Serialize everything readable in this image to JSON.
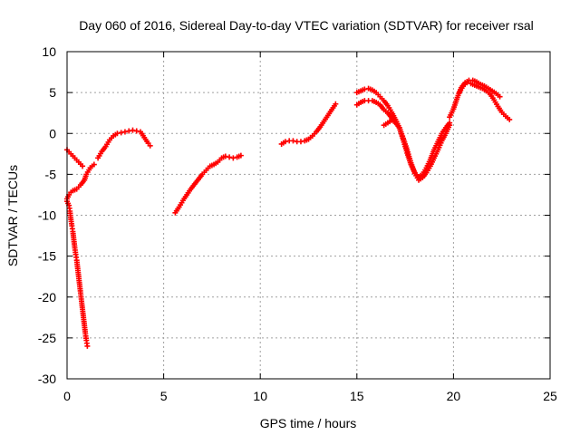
{
  "chart_data": {
    "type": "scatter",
    "title": "Day 060 of 2016, Sidereal Day-to-day VTEC variation (SDTVAR) for receiver rsal",
    "xlabel": "GPS time / hours",
    "ylabel": "SDTVAR / TECUs",
    "xlim": [
      0,
      25
    ],
    "ylim": [
      -30,
      10
    ],
    "xticks": [
      0,
      5,
      10,
      15,
      20,
      25
    ],
    "yticks": [
      -30,
      -25,
      -20,
      -15,
      -10,
      -5,
      0,
      5,
      10
    ],
    "grid": true,
    "marker": "plus",
    "series": [
      {
        "name": "SDTVAR",
        "color": "#ff0000",
        "segments": [
          [
            [
              0.0,
              -2.0
            ],
            [
              0.2,
              -2.5
            ],
            [
              0.4,
              -3.0
            ],
            [
              0.6,
              -3.5
            ],
            [
              0.8,
              -4.0
            ]
          ],
          [
            [
              0.0,
              -8.3
            ],
            [
              0.1,
              -8.8
            ],
            [
              0.15,
              -9.5
            ],
            [
              0.2,
              -10.5
            ],
            [
              0.25,
              -11.3
            ],
            [
              0.3,
              -12.0
            ],
            [
              0.35,
              -13.0
            ],
            [
              0.4,
              -14.0
            ],
            [
              0.45,
              -14.8
            ],
            [
              0.5,
              -15.5
            ],
            [
              0.55,
              -16.5
            ],
            [
              0.6,
              -17.5
            ],
            [
              0.65,
              -18.5
            ],
            [
              0.7,
              -19.5
            ],
            [
              0.75,
              -20.5
            ],
            [
              0.8,
              -21.5
            ],
            [
              0.85,
              -22.5
            ],
            [
              0.9,
              -23.5
            ],
            [
              0.95,
              -24.5
            ],
            [
              1.0,
              -25.3
            ],
            [
              1.05,
              -26.0
            ]
          ],
          [
            [
              0.0,
              -8.0
            ],
            [
              0.1,
              -7.5
            ],
            [
              0.2,
              -7.2
            ],
            [
              0.3,
              -7.0
            ],
            [
              0.5,
              -6.8
            ],
            [
              0.7,
              -6.3
            ],
            [
              0.9,
              -5.7
            ],
            [
              1.0,
              -5.0
            ],
            [
              1.2,
              -4.2
            ],
            [
              1.4,
              -3.8
            ]
          ],
          [
            [
              1.6,
              -3.0
            ],
            [
              1.8,
              -2.2
            ],
            [
              2.0,
              -1.6
            ],
            [
              2.2,
              -0.8
            ],
            [
              2.4,
              -0.3
            ],
            [
              2.6,
              0.0
            ],
            [
              2.8,
              0.1
            ],
            [
              3.0,
              0.2
            ],
            [
              3.2,
              0.3
            ],
            [
              3.4,
              0.4
            ],
            [
              3.6,
              0.3
            ],
            [
              3.8,
              0.2
            ],
            [
              4.0,
              -0.5
            ],
            [
              4.2,
              -1.2
            ],
            [
              4.3,
              -1.5
            ]
          ],
          [
            [
              5.6,
              -9.7
            ],
            [
              5.8,
              -9.0
            ],
            [
              6.0,
              -8.2
            ],
            [
              6.2,
              -7.5
            ],
            [
              6.4,
              -6.8
            ],
            [
              6.6,
              -6.2
            ],
            [
              6.8,
              -5.6
            ],
            [
              7.0,
              -5.0
            ],
            [
              7.2,
              -4.5
            ],
            [
              7.4,
              -4.0
            ],
            [
              7.6,
              -3.8
            ],
            [
              7.8,
              -3.5
            ],
            [
              8.0,
              -3.0
            ],
            [
              8.2,
              -2.8
            ],
            [
              8.4,
              -2.9
            ],
            [
              8.6,
              -3.0
            ],
            [
              8.8,
              -2.9
            ],
            [
              9.0,
              -2.7
            ]
          ],
          [
            [
              11.1,
              -1.3
            ],
            [
              11.3,
              -1.0
            ],
            [
              11.5,
              -0.9
            ],
            [
              11.7,
              -0.9
            ],
            [
              11.9,
              -1.0
            ],
            [
              12.1,
              -1.0
            ],
            [
              12.3,
              -0.9
            ],
            [
              12.5,
              -0.7
            ],
            [
              12.7,
              -0.3
            ],
            [
              12.9,
              0.2
            ],
            [
              13.1,
              0.8
            ],
            [
              13.3,
              1.5
            ],
            [
              13.5,
              2.2
            ],
            [
              13.7,
              2.9
            ],
            [
              13.9,
              3.6
            ]
          ],
          [
            [
              15.0,
              5.0
            ],
            [
              15.2,
              5.2
            ],
            [
              15.4,
              5.4
            ],
            [
              15.6,
              5.5
            ],
            [
              15.8,
              5.3
            ],
            [
              16.0,
              5.0
            ],
            [
              16.2,
              4.5
            ],
            [
              16.4,
              4.0
            ],
            [
              16.6,
              3.4
            ],
            [
              16.8,
              2.6
            ],
            [
              17.0,
              1.7
            ],
            [
              17.2,
              0.7
            ],
            [
              17.4,
              -0.6
            ],
            [
              17.6,
              -2.0
            ],
            [
              17.8,
              -3.6
            ],
            [
              18.0,
              -4.9
            ],
            [
              18.2,
              -5.7
            ],
            [
              18.4,
              -5.4
            ],
            [
              18.6,
              -4.8
            ],
            [
              18.8,
              -4.0
            ],
            [
              19.0,
              -3.0
            ],
            [
              19.2,
              -2.0
            ],
            [
              19.4,
              -0.9
            ],
            [
              19.6,
              0.0
            ],
            [
              19.8,
              1.0
            ]
          ],
          [
            [
              15.0,
              3.5
            ],
            [
              15.2,
              3.8
            ],
            [
              15.4,
              4.0
            ],
            [
              15.6,
              4.0
            ],
            [
              15.8,
              4.0
            ],
            [
              16.0,
              3.8
            ],
            [
              16.2,
              3.5
            ],
            [
              16.4,
              2.9
            ],
            [
              16.6,
              2.5
            ],
            [
              16.8,
              1.9
            ],
            [
              17.0,
              1.3
            ],
            [
              17.2,
              0.7
            ],
            [
              17.4,
              -0.8
            ],
            [
              17.6,
              -2.4
            ],
            [
              17.8,
              -3.8
            ],
            [
              18.0,
              -4.8
            ],
            [
              18.2,
              -5.3
            ],
            [
              18.4,
              -5.0
            ],
            [
              18.6,
              -4.2
            ],
            [
              18.8,
              -3.2
            ],
            [
              19.0,
              -2.0
            ],
            [
              19.2,
              -1.0
            ],
            [
              19.4,
              0.0
            ],
            [
              19.6,
              0.7
            ],
            [
              19.8,
              1.3
            ]
          ],
          [
            [
              16.4,
              1.0
            ],
            [
              16.6,
              1.3
            ],
            [
              16.8,
              1.6
            ],
            [
              17.0,
              1.4
            ]
          ],
          [
            [
              19.8,
              2.0
            ],
            [
              20.0,
              3.0
            ],
            [
              20.2,
              4.4
            ],
            [
              20.4,
              5.6
            ],
            [
              20.6,
              6.2
            ],
            [
              20.8,
              6.5
            ],
            [
              21.0,
              6.5
            ],
            [
              21.2,
              6.3
            ],
            [
              21.4,
              6.0
            ],
            [
              21.6,
              5.8
            ],
            [
              21.8,
              5.5
            ],
            [
              22.0,
              5.2
            ],
            [
              22.2,
              4.9
            ],
            [
              22.4,
              4.5
            ]
          ],
          [
            [
              20.3,
              5.0
            ],
            [
              20.5,
              5.8
            ],
            [
              20.7,
              6.2
            ],
            [
              20.9,
              6.1
            ],
            [
              21.1,
              5.9
            ],
            [
              21.3,
              5.7
            ],
            [
              21.5,
              5.5
            ],
            [
              21.7,
              5.2
            ],
            [
              21.9,
              4.8
            ],
            [
              22.1,
              4.1
            ],
            [
              22.3,
              3.3
            ],
            [
              22.5,
              2.6
            ],
            [
              22.7,
              2.1
            ],
            [
              22.9,
              1.7
            ]
          ]
        ]
      }
    ]
  }
}
